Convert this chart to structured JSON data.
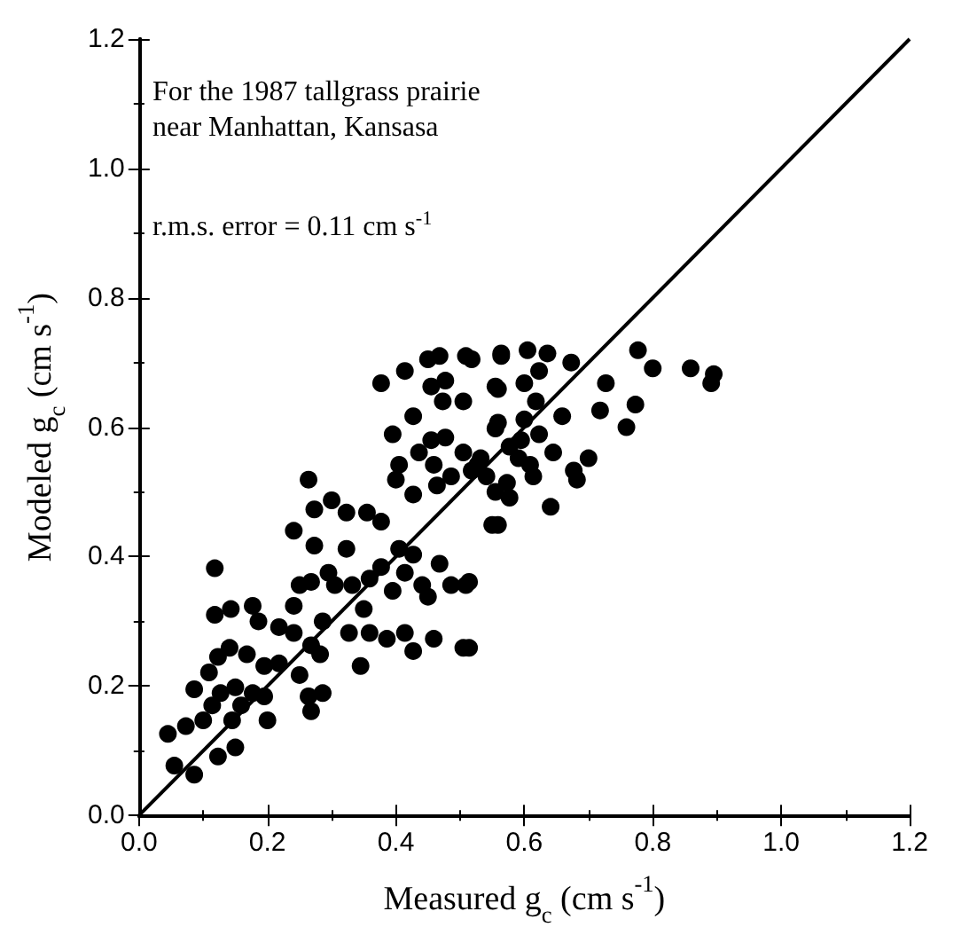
{
  "chart_data": {
    "type": "scatter",
    "xlabel": "Measured g$_{c}$ (cm s$^{-1}$)",
    "ylabel": "Modeled g$_{c}$ (cm s$^{-1}$)",
    "annotations": [
      "For the 1987 tallgrass prairie\nnear Manhattan, Kansasa",
      "r.m.s. error = 0.11 cm s$^{-1}$"
    ],
    "xlim": [
      0,
      1.2
    ],
    "ylim": [
      0,
      1.2
    ],
    "xticks": [
      {
        "value": 0,
        "label": "0.0"
      },
      0.2,
      0.4,
      0.6,
      0.8,
      {
        "value": 1,
        "label": "1.0"
      },
      1.2
    ],
    "yticks": [
      {
        "value": 0,
        "label": "0.0"
      },
      0.2,
      0.4,
      0.6,
      0.8,
      {
        "value": 1,
        "label": "1.0"
      },
      1.2
    ],
    "grid": false,
    "marker": "circle",
    "series": [
      {
        "color": "#000000",
        "x": [
          0.045,
          0.055,
          0.086,
          0.073,
          0.086,
          0.118,
          0.118,
          0.143,
          0.109,
          0.123,
          0.141,
          0.168,
          0.127,
          0.15,
          0.114,
          0.1,
          0.123,
          0.15,
          0.145,
          0.159,
          0.177,
          0.2,
          0.195,
          0.177,
          0.186,
          0.218,
          0.195,
          0.218,
          0.241,
          0.241,
          0.241,
          0.264,
          0.273,
          0.273,
          0.25,
          0.268,
          0.25,
          0.264,
          0.268,
          0.286,
          0.268,
          0.286,
          0.282,
          0.295,
          0.305,
          0.3,
          0.323,
          0.323,
          0.332,
          0.327,
          0.345,
          0.35,
          0.355,
          0.377,
          0.359,
          0.377,
          0.359,
          0.386,
          0.395,
          0.405,
          0.414,
          0.427,
          0.441,
          0.468,
          0.414,
          0.427,
          0.459,
          0.45,
          0.486,
          0.505,
          0.509,
          0.377,
          0.414,
          0.395,
          0.405,
          0.4,
          0.427,
          0.436,
          0.427,
          0.45,
          0.468,
          0.455,
          0.473,
          0.477,
          0.455,
          0.477,
          0.459,
          0.464,
          0.486,
          0.505,
          0.509,
          0.505,
          0.518,
          0.532,
          0.55,
          0.564,
          0.555,
          0.559,
          0.577,
          0.541,
          0.518,
          0.564,
          0.605,
          0.636,
          0.673,
          0.777,
          0.8,
          0.859,
          0.895,
          0.891,
          0.559,
          0.6,
          0.623,
          0.618,
          0.6,
          0.555,
          0.659,
          0.727,
          0.718,
          0.773,
          0.759,
          0.595,
          0.623,
          0.645,
          0.7,
          0.591,
          0.609,
          0.677,
          0.682,
          0.614,
          0.573,
          0.555,
          0.577,
          0.641,
          0.559,
          0.514,
          0.514,
          0.527
        ],
        "values": [
          0.126,
          0.077,
          0.063,
          0.138,
          0.195,
          0.382,
          0.31,
          0.319,
          0.221,
          0.245,
          0.259,
          0.249,
          0.189,
          0.198,
          0.17,
          0.147,
          0.091,
          0.105,
          0.147,
          0.17,
          0.189,
          0.147,
          0.184,
          0.324,
          0.3,
          0.291,
          0.231,
          0.235,
          0.282,
          0.324,
          0.44,
          0.519,
          0.473,
          0.417,
          0.356,
          0.361,
          0.217,
          0.184,
          0.161,
          0.189,
          0.263,
          0.3,
          0.249,
          0.375,
          0.356,
          0.487,
          0.468,
          0.412,
          0.356,
          0.282,
          0.231,
          0.319,
          0.468,
          0.454,
          0.366,
          0.384,
          0.282,
          0.273,
          0.347,
          0.412,
          0.375,
          0.403,
          0.356,
          0.389,
          0.282,
          0.254,
          0.273,
          0.338,
          0.356,
          0.259,
          0.356,
          0.668,
          0.687,
          0.589,
          0.542,
          0.519,
          0.617,
          0.561,
          0.496,
          0.705,
          0.71,
          0.663,
          0.64,
          0.672,
          0.58,
          0.584,
          0.542,
          0.51,
          0.524,
          0.64,
          0.71,
          0.561,
          0.533,
          0.552,
          0.449,
          0.714,
          0.663,
          0.607,
          0.57,
          0.524,
          0.705,
          0.71,
          0.719,
          0.714,
          0.7,
          0.719,
          0.691,
          0.691,
          0.682,
          0.668,
          0.659,
          0.668,
          0.687,
          0.64,
          0.612,
          0.598,
          0.617,
          0.668,
          0.626,
          0.635,
          0.6,
          0.58,
          0.589,
          0.561,
          0.552,
          0.552,
          0.542,
          0.533,
          0.519,
          0.524,
          0.514,
          0.5,
          0.491,
          0.477,
          0.449,
          0.361,
          0.259,
          0.542
        ]
      },
      {
        "type": "line",
        "color": "#000000",
        "marker": "none",
        "line_style": "solid",
        "x": [
          0,
          1.2
        ],
        "values": [
          0,
          1.2
        ]
      }
    ]
  }
}
